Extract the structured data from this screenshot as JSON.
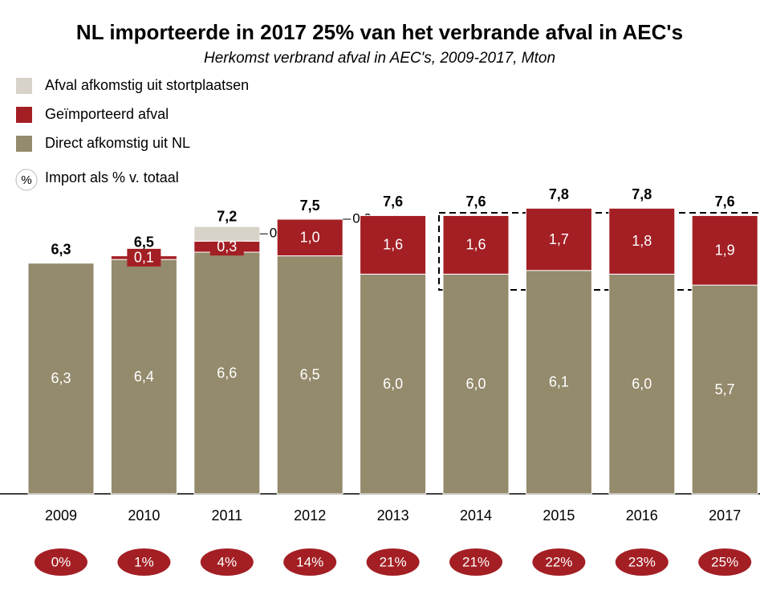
{
  "chart_data": {
    "type": "stacked_bar",
    "title": "NL importeerde in 2017 25% van het verbrande afval in AEC's",
    "subtitle": "Herkomst verbrand afval in AEC's, 2009-2017, Mton",
    "categories": [
      "2009",
      "2010",
      "2011",
      "2012",
      "2013",
      "2014",
      "2015",
      "2016",
      "2017"
    ],
    "ylim": [
      0,
      10
    ],
    "series": [
      {
        "name": "Direct afkomstig uit NL",
        "color": "#948a6c",
        "values": [
          6.3,
          6.4,
          6.6,
          6.5,
          6.0,
          6.0,
          6.1,
          6.0,
          5.7
        ],
        "value_labels": [
          "6,3",
          "6,4",
          "6,6",
          "6,5",
          "6,0",
          "6,0",
          "6,1",
          "6,0",
          "5,7"
        ]
      },
      {
        "name": "Geïmporteerd afval",
        "color": "#a31f24",
        "values": [
          null,
          0.1,
          0.3,
          1.0,
          1.6,
          1.6,
          1.7,
          1.8,
          1.9
        ],
        "value_labels": [
          null,
          "0,1",
          "0,3",
          "1,0",
          "1,6",
          "1,6",
          "1,7",
          "1,8",
          "1,9"
        ]
      },
      {
        "name": "Afval afkomstig uit stortplaatsen",
        "color": "#d8d3c8",
        "values": [
          null,
          null,
          0.4,
          0.0,
          null,
          null,
          null,
          null,
          null
        ],
        "value_labels": [
          null,
          null,
          "0,4",
          "0,0",
          null,
          null,
          null,
          null,
          null
        ]
      }
    ],
    "totals": [
      6.3,
      6.5,
      7.2,
      7.5,
      7.6,
      7.6,
      7.8,
      7.8,
      7.6
    ],
    "total_labels": [
      "6,3",
      "6,5",
      "7,2",
      "7,5",
      "7,6",
      "7,6",
      "7,8",
      "7,8",
      "7,6"
    ],
    "import_share_symbol": "%",
    "import_share_name": "Import als % v. totaal",
    "import_share": [
      0,
      1,
      4,
      14,
      21,
      21,
      22,
      23,
      25
    ],
    "import_share_labels": [
      "0%",
      "1%",
      "4%",
      "14%",
      "21%",
      "21%",
      "22%",
      "23%",
      "25%"
    ]
  }
}
